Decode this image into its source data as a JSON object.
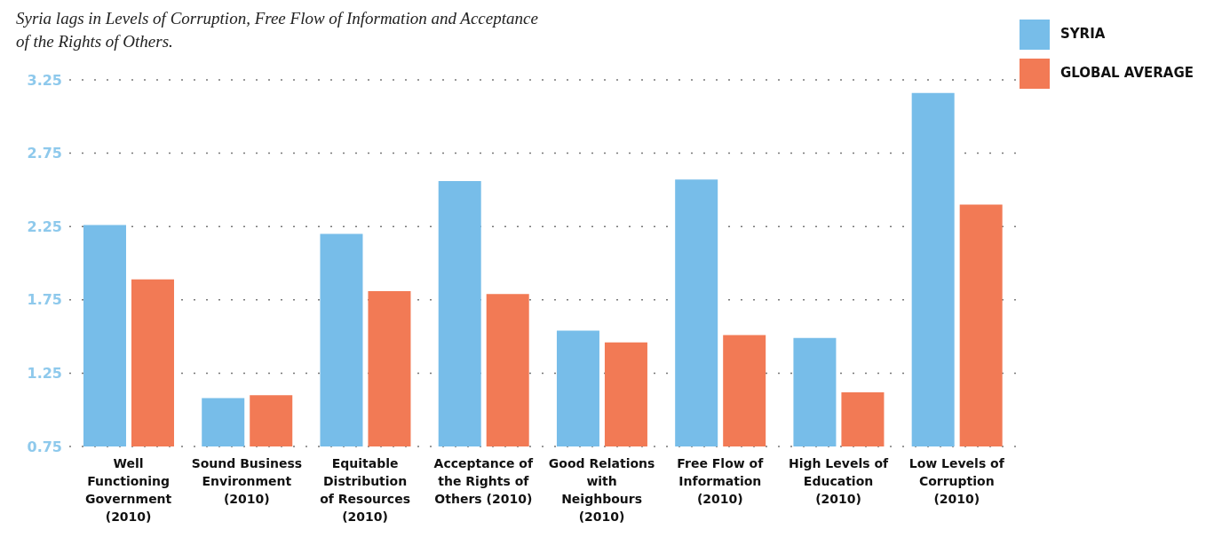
{
  "chart_data": {
    "type": "bar",
    "title": "Syria lags in Levels of Corruption, Free Flow of Information and Acceptance of the Rights of Others.",
    "categories": [
      "Well Functioning Government (2010)",
      "Sound Business Environment (2010)",
      "Equitable Distribution of Resources (2010)",
      "Acceptance of the Rights of Others (2010)",
      "Good Relations with Neighbours (2010)",
      "Free Flow of Information (2010)",
      "High Levels of Education (2010)",
      "Low Levels of Corruption (2010)"
    ],
    "series": [
      {
        "name": "SYRIA",
        "color": "#77bde9",
        "values": [
          2.26,
          1.08,
          2.2,
          2.56,
          1.54,
          2.57,
          1.49,
          3.16
        ]
      },
      {
        "name": "GLOBAL AVERAGE",
        "color": "#f27a55",
        "values": [
          1.89,
          1.1,
          1.81,
          1.79,
          1.46,
          1.51,
          1.12,
          2.4
        ]
      }
    ],
    "ylim": [
      0.75,
      3.25
    ],
    "yticks": [
      0.75,
      1.25,
      1.75,
      2.25,
      2.75,
      3.25
    ],
    "grid": "y",
    "legend": "top right"
  }
}
